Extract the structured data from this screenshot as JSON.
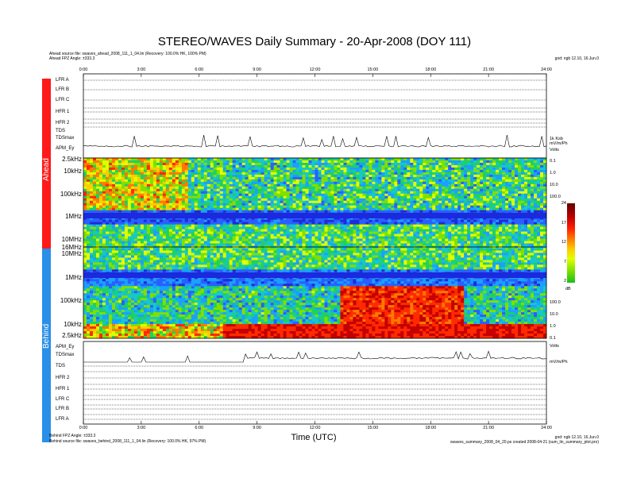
{
  "chart_data": {
    "type": "heatmap",
    "title": "STEREO/WAVES Daily Summary - 20-Apr-2008 (DOY 111)",
    "xlabel": "Time (UTC)",
    "x_ticks": [
      "0:00",
      "3:00",
      "6:00",
      "9:00",
      "12:00",
      "15:00",
      "18:00",
      "21:00",
      "24:00"
    ],
    "xlim": [
      "0:00",
      "24:00"
    ],
    "ahead": {
      "source_file": "Ahead source file: swaves_ahead_2008_111_1_04.lin (Recovery: 100.0% HK, 100% PM)",
      "fpz_angle": "Ahead FPZ Angle: ±333.3",
      "rows": [
        "LFR A",
        "LFR B",
        "LFR C",
        "HFR 1",
        "HFR 2",
        "TDS",
        "TDSmax",
        "APM_Ey"
      ],
      "freq_ticks": [
        "2.5kHz",
        "10kHz",
        "100kHz",
        "1MHz",
        "10MHz",
        "16MHz"
      ],
      "version": "gnd: ngb 12.10, 16.Jun.0"
    },
    "behind": {
      "source_file": "Behind source file: swaves_behind_2008_111_1_04.lin (Recovery: 100.0% HK, 97% PM)",
      "fpz_angle": "Behind FPZ Angle: ±333.3",
      "rows": [
        "APM_Ey",
        "TDSmax",
        "TDS",
        "HFR 2",
        "HFR 1",
        "LFR C",
        "LFR B",
        "LFR A"
      ],
      "freq_ticks": [
        "10MHz",
        "1MHz",
        "100kHz",
        "10kHz",
        "2.5kHz"
      ],
      "version": "gnd: ngb 12.10, 16.Jun.0"
    },
    "colorbar": {
      "label": "dB",
      "ticks": [
        "24",
        "17",
        "12",
        "7",
        "2"
      ],
      "range": [
        2,
        24
      ]
    },
    "footer_right": "swaves_summary_2008_04_20.ps  created 2008-04-21  (sum_lin_summary_plot.pro)",
    "vertical_labels": {
      "ahead": "Ahead",
      "behind": "Behind"
    },
    "spec_scale_ahead": [
      "0.1",
      "1.0",
      "10.0",
      "100.0"
    ],
    "spec_scale_behind": [
      "100.0",
      "10.0",
      "1.0",
      "0.1"
    ],
    "tds_units": [
      "1k Ksb",
      "mV/m/Ph",
      "Volts"
    ],
    "colors": {
      "ahead_bar": "#ff1a1a",
      "behind_bar": "#2a8fe8",
      "gap_band": "#1a2adc",
      "quiet": "#2860ff",
      "mid": "#16c8c8",
      "active": "#ff2a00"
    }
  }
}
